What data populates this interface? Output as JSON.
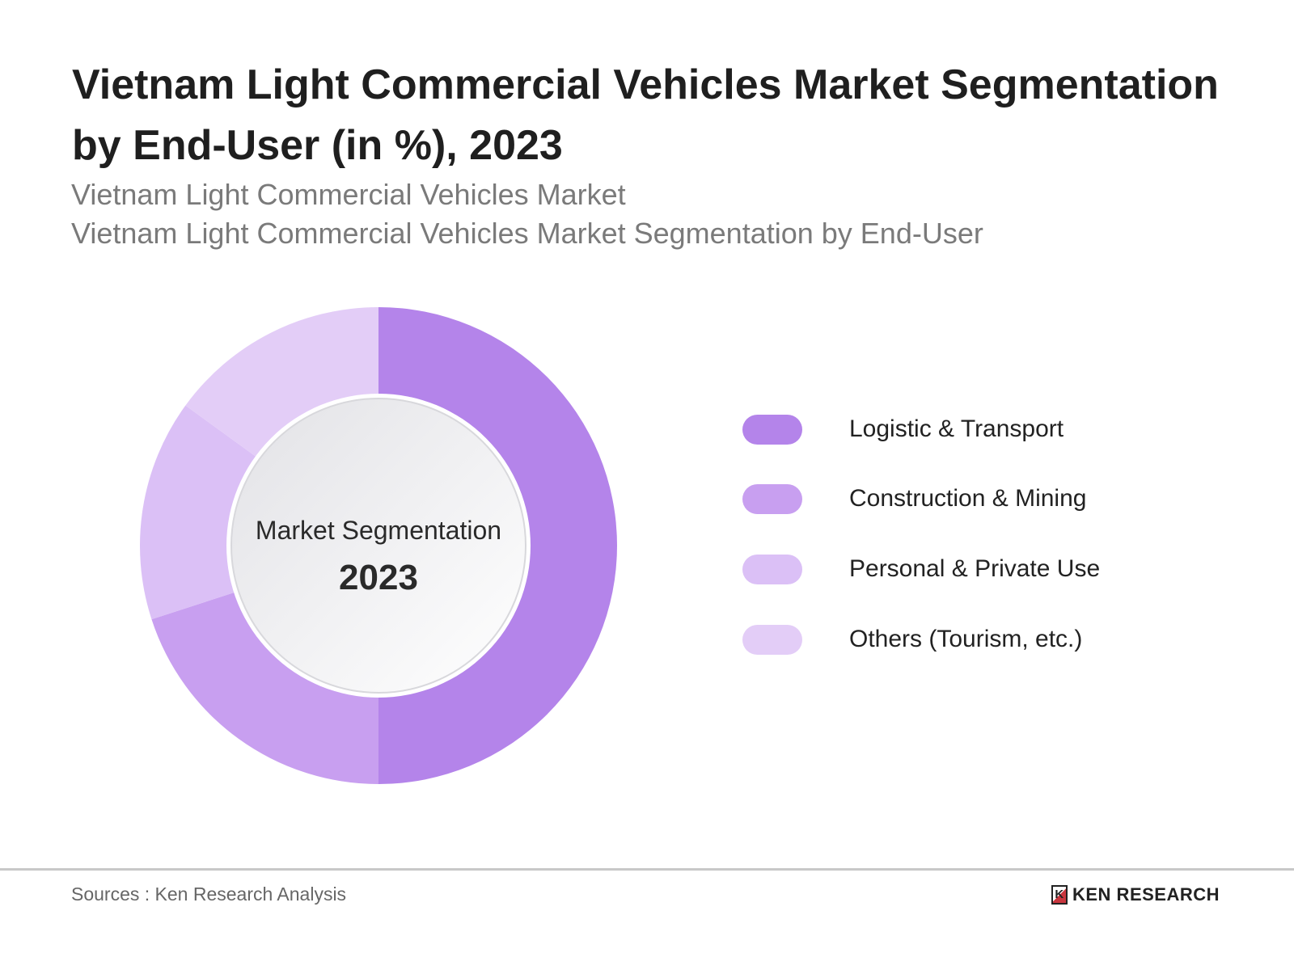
{
  "title": "Vietnam Light Commercial Vehicles Market Segmentation by End-User (in %), 2023",
  "subtitles": [
    "Vietnam Light Commercial Vehicles Market",
    "Vietnam Light Commercial Vehicles Market Segmentation by End-User"
  ],
  "chart_data": {
    "type": "pie",
    "variant": "donut",
    "title": "Vietnam Light Commercial Vehicles Market Segmentation by End-User (in %), 2023",
    "center_label": "Market Segmentation",
    "center_value": "2023",
    "categories": [
      "Logistic & Transport",
      "Construction & Mining",
      "Personal & Private Use",
      "Others (Tourism, etc.)"
    ],
    "values": [
      50,
      20,
      15,
      15
    ],
    "colors": [
      "#b484ea",
      "#c89ff0",
      "#dbc0f6",
      "#e3cdf7"
    ],
    "legend_position": "right"
  },
  "footer": {
    "source": "Sources : Ken Research Analysis",
    "logo_text": "KEN RESEARCH",
    "logo_mark": "K"
  }
}
